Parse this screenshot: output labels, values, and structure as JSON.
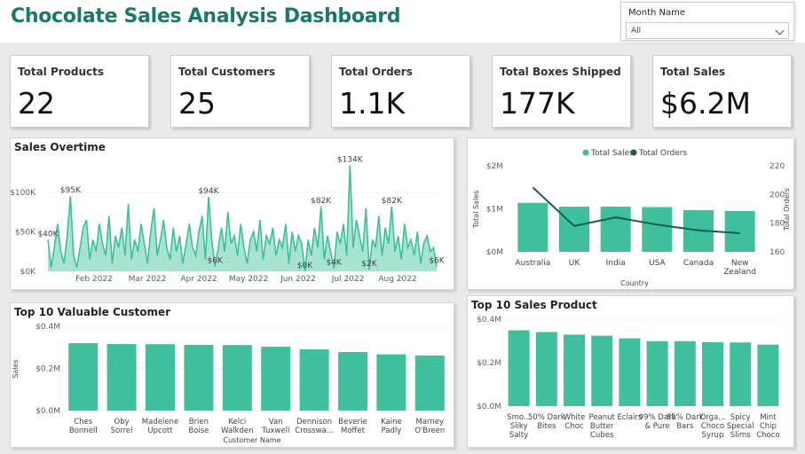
{
  "header": {
    "title": "Chocolate Sales Analysis Dashboard"
  },
  "slicer": {
    "label": "Month Name",
    "value": "All"
  },
  "kpis": [
    {
      "label": "Total Products",
      "value": "22"
    },
    {
      "label": "Total Customers",
      "value": "25"
    },
    {
      "label": "Total Orders",
      "value": "1.1K"
    },
    {
      "label": "Total Boxes Shipped",
      "value": "177K"
    },
    {
      "label": "Total Sales",
      "value": "$6.2M"
    }
  ],
  "colors": {
    "accent": "#3fbf9b",
    "area_fill": "#a6e3d1",
    "line_dark": "#155e4a",
    "title": "#1a7a68"
  },
  "chart_data": [
    {
      "id": "sales_overtime",
      "type": "area",
      "title": "Sales Overtime",
      "y_ticks": [
        "$0K",
        "$50K",
        "$100K"
      ],
      "y_tick_values": [
        0,
        50000,
        100000
      ],
      "ylim": [
        0,
        130000
      ],
      "x_ticks": [
        "Feb 2022",
        "Mar 2022",
        "Apr 2022",
        "May 2022",
        "Jun 2022",
        "Jul 2022",
        "Aug 2022"
      ],
      "annotations": [
        "$40K",
        "$95K",
        "$94K",
        "$6K",
        "$0K",
        "$82K",
        "$134K",
        "$4K",
        "$2K",
        "$82K",
        "$6K"
      ],
      "values": [
        40000,
        5000,
        30000,
        60000,
        25000,
        10000,
        45000,
        95000,
        20000,
        5000,
        30000,
        55000,
        65000,
        15000,
        40000,
        25000,
        60000,
        35000,
        20000,
        70000,
        10000,
        45000,
        30000,
        55000,
        20000,
        85000,
        15000,
        40000,
        25000,
        60000,
        35000,
        10000,
        50000,
        80000,
        20000,
        40000,
        65000,
        30000,
        15000,
        55000,
        25000,
        45000,
        10000,
        35000,
        60000,
        30000,
        20000,
        50000,
        70000,
        15000,
        94000,
        40000,
        6000,
        30000,
        55000,
        25000,
        75000,
        35000,
        45000,
        20000,
        60000,
        30000,
        10000,
        40000,
        50000,
        25000,
        65000,
        15000,
        45000,
        35000,
        55000,
        20000,
        40000,
        30000,
        60000,
        10000,
        50000,
        25000,
        45000,
        35000,
        0,
        40000,
        20000,
        55000,
        30000,
        82000,
        15000,
        45000,
        25000,
        4000,
        50000,
        35000,
        60000,
        20000,
        134000,
        30000,
        65000,
        45000,
        25000,
        80000,
        2000,
        40000,
        30000,
        70000,
        20000,
        55000,
        35000,
        82000,
        25000,
        45000,
        15000,
        60000,
        30000,
        40000,
        20000,
        50000,
        10000,
        35000,
        45000,
        25000,
        30000,
        6000
      ]
    },
    {
      "id": "sales_by_country",
      "type": "bar",
      "categories": [
        "Australia",
        "UK",
        "India",
        "USA",
        "Canada",
        "New Zealand"
      ],
      "series": [
        {
          "name": "Total Sales",
          "values": [
            1140000,
            1050000,
            1050000,
            1040000,
            970000,
            950000
          ]
        },
        {
          "name": "Total Orders",
          "values": [
            205,
            178,
            184,
            179,
            175,
            173
          ]
        }
      ],
      "xlabel": "Country",
      "ylabel": "Total Sales",
      "y2label": "Total Orders",
      "y_ticks": [
        "$0M",
        "$1M",
        "$2M"
      ],
      "ylim": [
        0,
        2000000
      ],
      "y2_ticks": [
        "160",
        "180",
        "200",
        "220"
      ],
      "y2lim": [
        160,
        220
      ],
      "legend": "top-center"
    },
    {
      "id": "top_customers",
      "type": "bar",
      "title": "Top 10 Valuable Customer",
      "categories": [
        "Ches Bonnell",
        "Oby Sorrel",
        "Madelene Upcott",
        "Brien Boise",
        "Kelci Walkden",
        "Van Tuxwell",
        "Dennison Crosswa...",
        "Beverie Moffet",
        "Kaine Padly",
        "Marney O'Breen"
      ],
      "values": [
        320000,
        316000,
        315000,
        312000,
        311000,
        303000,
        291000,
        278000,
        267000,
        261000
      ],
      "xlabel": "Customer Name",
      "ylabel": "Sales",
      "y_ticks": [
        "$0.0M",
        "$0.2M",
        "$0.4M"
      ],
      "ylim": [
        0,
        400000
      ]
    },
    {
      "id": "top_products",
      "type": "bar",
      "title": "Top 10 Sales Product",
      "categories": [
        "Smo... Sliky Salty",
        "50% Dark Bites",
        "White Choc",
        "Peanut Butter Cubes",
        "Eclairs",
        "99% Dark & Pure",
        "85% Dark Bars",
        "Orga... Choco Syrup",
        "Spicy Special Slims",
        "Mint Chip Choco"
      ],
      "values": [
        349000,
        341000,
        329000,
        324000,
        312000,
        299000,
        299000,
        294000,
        293000,
        283000
      ],
      "y_ticks": [
        "$0.0M",
        "$0.2M",
        "$0.4M"
      ],
      "ylim": [
        0,
        400000
      ]
    }
  ]
}
